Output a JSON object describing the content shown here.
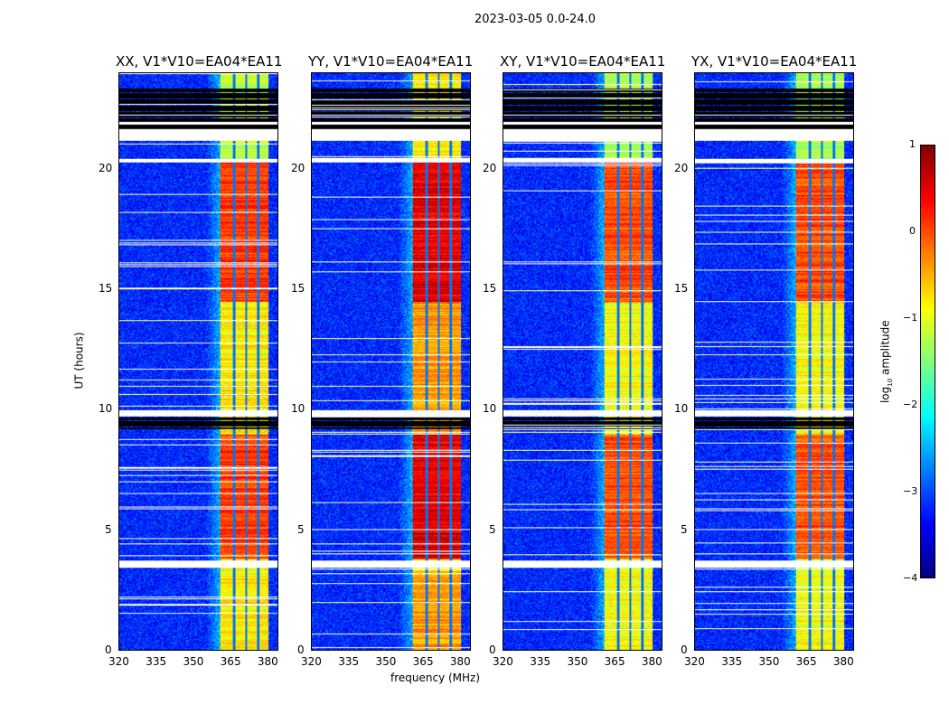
{
  "chart_data": {
    "type": "heatmap",
    "title": "2023-03-05 0.0-24.0",
    "xlabel": "frequency (MHz)",
    "ylabel": "UT (hours)",
    "xlim": [
      320,
      384.4
    ],
    "ylim": [
      0,
      24
    ],
    "xticks": [
      "320",
      "335",
      "350",
      "365",
      "380"
    ],
    "xtick_values": [
      320,
      335,
      350,
      365,
      380
    ],
    "yticks": [
      "0",
      "5",
      "10",
      "15",
      "20"
    ],
    "ytick_values": [
      0,
      5,
      10,
      15,
      20
    ],
    "colorbar": {
      "label": "log10 amplitude",
      "label_main": "log",
      "label_sub": "10",
      "label_rest": " amplitude",
      "ticks": [
        "1",
        "0",
        "−1",
        "−2",
        "−3",
        "−4"
      ],
      "tick_values": [
        1,
        0,
        -1,
        -2,
        -3,
        -4
      ],
      "range": [
        -4,
        1
      ],
      "colormap": "jet"
    },
    "panels": [
      {
        "title": "XX, V1*V10=EA04*EA11",
        "band_boost": 0
      },
      {
        "title": "YY, V1*V10=EA04*EA11",
        "band_boost": 0.4
      },
      {
        "title": "XY, V1*V10=EA04*EA11",
        "band_boost": -0.1
      },
      {
        "title": "YX, V1*V10=EA04*EA11",
        "band_boost": -0.1
      }
    ],
    "background_level": -3.2,
    "rfi_band_mhz": [
      361,
      380.5
    ],
    "band_gaps_mhz": [
      366.5,
      371.5,
      376.5
    ],
    "band_levels_by_hour": [
      [
        0,
        3.2,
        -0.8
      ],
      [
        3.8,
        9,
        0.1
      ],
      [
        9,
        14.5,
        -0.8
      ],
      [
        14.5,
        20.3,
        0.1
      ],
      [
        20.3,
        24,
        -1.2
      ]
    ],
    "flagged_white_hours": [
      [
        3.45,
        3.75
      ],
      [
        9.75,
        10.0
      ],
      [
        20.3,
        20.45
      ],
      [
        21.2,
        21.7
      ],
      [
        21.9,
        22.0
      ],
      [
        22.25,
        22.3
      ]
    ],
    "flagged_black_hours": [
      [
        9.2,
        9.7
      ],
      [
        21.7,
        23.4
      ]
    ]
  }
}
